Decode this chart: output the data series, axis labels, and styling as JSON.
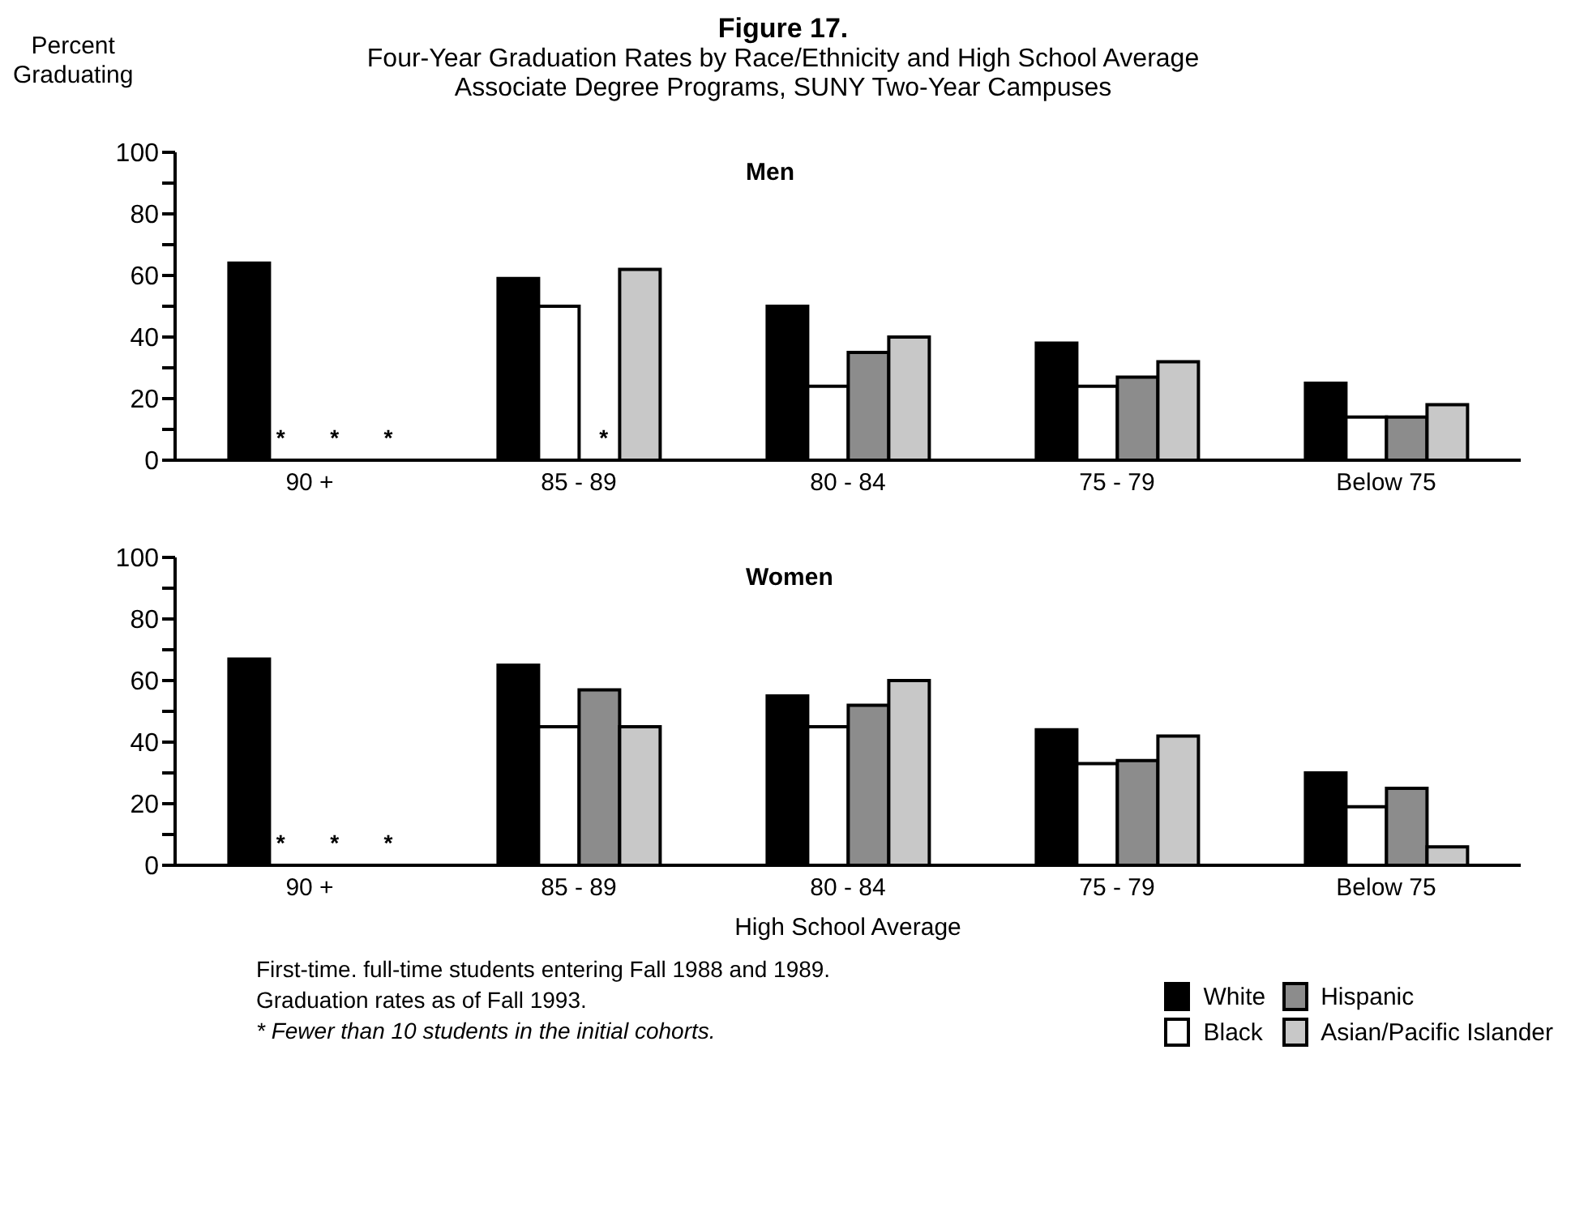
{
  "chart_data": [
    {
      "type": "bar",
      "title": "Figure 17.",
      "subtitle": "Four-Year Graduation Rates by Race/Ethnicity and High School Average\nAssociate Degree Programs, SUNY Two-Year Campuses",
      "ylabel": "Percent\nGraduating",
      "annotations": [
        "Men"
      ],
      "categories": [
        "90 +",
        "85 - 89",
        "80 - 84",
        "75 - 79",
        "Below 75"
      ],
      "ylim": [
        0,
        100
      ],
      "yticks": [
        0,
        {
          "value": 10,
          "label": null
        },
        20,
        {
          "value": 30,
          "label": null
        },
        40,
        {
          "value": 50,
          "label": null
        },
        60,
        {
          "value": 70,
          "label": null
        },
        80,
        {
          "value": 90,
          "label": null
        },
        100
      ],
      "grid": false,
      "legend": false,
      "series": [
        {
          "color": "#000000",
          "values": [
            64,
            59,
            50,
            38,
            25
          ]
        },
        {
          "color": "#ffffff",
          "values": [
            null,
            50,
            24,
            24,
            14
          ],
          "value_labels": [
            "*",
            null,
            null,
            null,
            null
          ]
        },
        {
          "color": "#8c8c8c",
          "values": [
            null,
            null,
            35,
            27,
            14
          ],
          "value_labels": [
            "*",
            "*",
            null,
            null,
            null
          ]
        },
        {
          "color": "#c8c8c8",
          "values": [
            null,
            62,
            40,
            32,
            18
          ],
          "value_labels": [
            "*",
            null,
            null,
            null,
            null
          ]
        }
      ]
    },
    {
      "type": "bar",
      "title": "Women",
      "xlabel": "High School Average",
      "annotations": [
        "First-time. full-time students entering Fall 1988 and 1989.",
        "Graduation rates as of Fall 1993.",
        "* Fewer than 10 students in the initial cohorts."
      ],
      "categories": [
        "90 +",
        "85 - 89",
        "80 - 84",
        "75 - 79",
        "Below 75"
      ],
      "ylim": [
        0,
        100
      ],
      "yticks": [
        0,
        {
          "value": 10,
          "label": null
        },
        20,
        {
          "value": 30,
          "label": null
        },
        40,
        {
          "value": 50,
          "label": null
        },
        60,
        {
          "value": 70,
          "label": null
        },
        80,
        {
          "value": 90,
          "label": null
        },
        100
      ],
      "grid": false,
      "legend": "bottom right",
      "series": [
        {
          "name": "White",
          "color": "#000000",
          "values": [
            67,
            65,
            55,
            44,
            30
          ]
        },
        {
          "name": "Black",
          "color": "#ffffff",
          "values": [
            null,
            45,
            45,
            33,
            19
          ],
          "value_labels": [
            "*",
            null,
            null,
            null,
            null
          ]
        },
        {
          "name": "Hispanic",
          "color": "#8c8c8c",
          "values": [
            null,
            57,
            52,
            34,
            25
          ],
          "value_labels": [
            "*",
            null,
            null,
            null,
            null
          ]
        },
        {
          "name": "Asian/Pacific Islander",
          "color": "#c8c8c8",
          "values": [
            null,
            45,
            60,
            42,
            6
          ],
          "value_labels": [
            "*",
            null,
            null,
            null,
            null
          ]
        }
      ]
    }
  ]
}
